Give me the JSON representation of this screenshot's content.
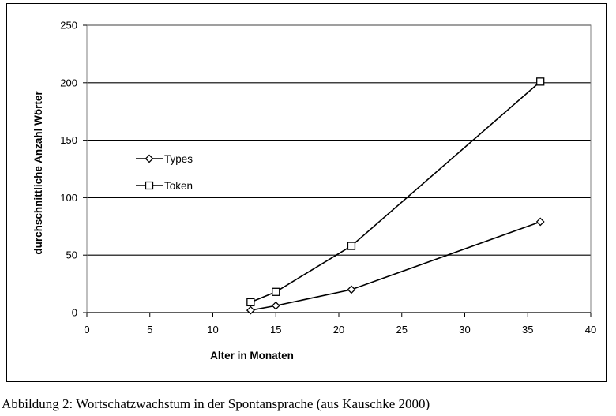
{
  "caption": "Abbildung 2: Wortschatzwachstum in der Spontansprache (aus Kauschke 2000)",
  "chart_data": {
    "type": "line",
    "title": "",
    "xlabel": "Alter in Monaten",
    "ylabel": "durchschnittliche Anzahl Wörter",
    "xlim": [
      0,
      40
    ],
    "ylim": [
      0,
      250
    ],
    "x_ticks": [
      0,
      5,
      10,
      15,
      20,
      25,
      30,
      35,
      40
    ],
    "y_ticks": [
      0,
      50,
      100,
      150,
      200,
      250
    ],
    "grid": "horizontal",
    "legend_position": "center-left",
    "series": [
      {
        "name": "Types",
        "marker": "diamond",
        "color": "#000000",
        "x": [
          13,
          15,
          21,
          36
        ],
        "y": [
          2,
          6,
          20,
          79
        ]
      },
      {
        "name": "Token",
        "marker": "square",
        "color": "#000000",
        "x": [
          13,
          15,
          21,
          36
        ],
        "y": [
          9,
          18,
          58,
          201
        ]
      }
    ]
  }
}
